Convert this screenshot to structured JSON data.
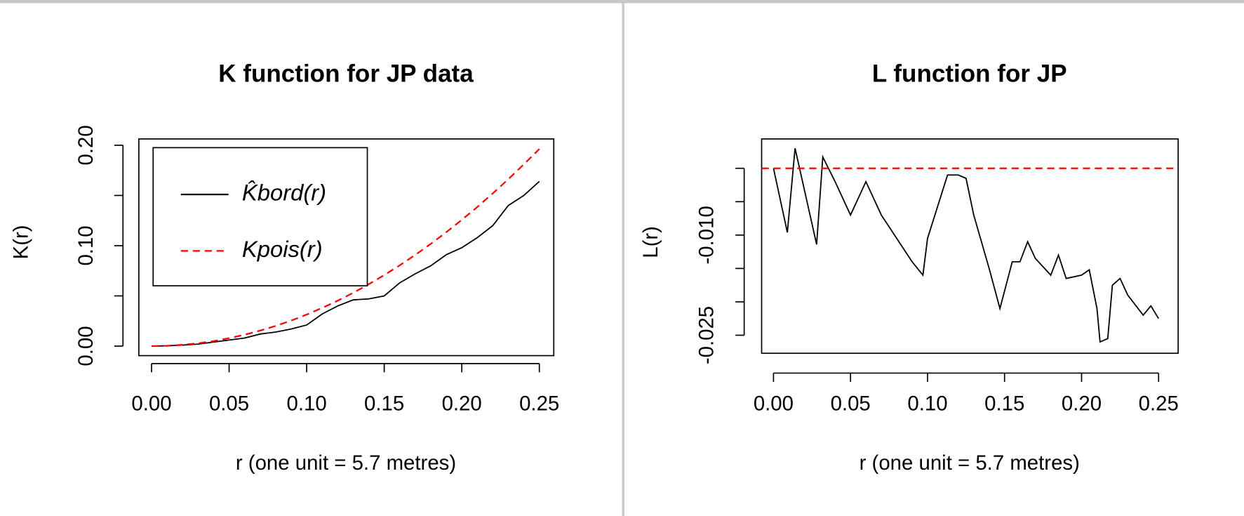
{
  "chart_data": [
    {
      "type": "line",
      "title": "K function for JP data",
      "x_label": "r (one unit = 5.7 metres)",
      "y_label": "K(r)",
      "x": [
        0,
        0.01,
        0.02,
        0.03,
        0.04,
        0.05,
        0.06,
        0.07,
        0.08,
        0.09,
        0.1,
        0.11,
        0.12,
        0.13,
        0.14,
        0.15,
        0.16,
        0.17,
        0.18,
        0.19,
        0.2,
        0.21,
        0.22,
        0.23,
        0.24,
        0.25
      ],
      "series": [
        {
          "name": "K̂bord(r)",
          "color": "#000000",
          "dash": "solid",
          "values": [
            0,
            0.0003,
            0.001,
            0.002,
            0.004,
            0.006,
            0.008,
            0.012,
            0.014,
            0.017,
            0.021,
            0.032,
            0.04,
            0.046,
            0.047,
            0.05,
            0.063,
            0.072,
            0.08,
            0.091,
            0.098,
            0.108,
            0.12,
            0.14,
            0.15,
            0.164
          ]
        },
        {
          "name": "Kpois(r)",
          "color": "#ff0000",
          "dash": "dashed",
          "values": [
            0,
            0.0003,
            0.0013,
            0.0028,
            0.005,
            0.0079,
            0.0113,
            0.0154,
            0.0201,
            0.0254,
            0.0314,
            0.038,
            0.0452,
            0.0531,
            0.0616,
            0.0707,
            0.0804,
            0.0908,
            0.1018,
            0.1134,
            0.1257,
            0.1385,
            0.1521,
            0.1662,
            0.181,
            0.1963
          ]
        }
      ],
      "xlim": [
        -0.0082,
        0.2593
      ],
      "ylim": [
        -0.0095,
        0.2063
      ],
      "xticks": [
        {
          "value": 0,
          "label": "0.00"
        },
        {
          "value": 0.05,
          "label": "0.05"
        },
        {
          "value": 0.1,
          "label": "0.10"
        },
        {
          "value": 0.15,
          "label": "0.15"
        },
        {
          "value": 0.2,
          "label": "0.20"
        },
        {
          "value": 0.25,
          "label": "0.25"
        }
      ],
      "yticks": [
        {
          "value": 0,
          "label": "0.00"
        },
        {
          "value": 0.05,
          "label": null
        },
        {
          "value": 0.1,
          "label": "0.10"
        },
        {
          "value": 0.15,
          "label": null
        },
        {
          "value": 0.2,
          "label": "0.20"
        }
      ],
      "legend": "topleft"
    },
    {
      "type": "line",
      "title": "L function for JP",
      "x_label": "r (one unit = 5.7 metres)",
      "y_label": "L(r)",
      "series": [
        {
          "color": "#000000",
          "dash": "solid",
          "x": [
            0,
            0.009,
            0.014,
            0.028,
            0.032,
            0.04,
            0.05,
            0.06,
            0.07,
            0.08,
            0.09,
            0.097,
            0.1,
            0.113,
            0.12,
            0.125,
            0.13,
            0.14,
            0.147,
            0.155,
            0.16,
            0.165,
            0.17,
            0.18,
            0.185,
            0.19,
            0.2,
            0.205,
            0.21,
            0.212,
            0.217,
            0.22,
            0.225,
            0.23,
            0.24,
            0.245,
            0.25
          ],
          "values": [
            0,
            -0.0096,
            0.003,
            -0.0114,
            0.0017,
            -0.002,
            -0.007,
            -0.002,
            -0.007,
            -0.0105,
            -0.014,
            -0.016,
            -0.0105,
            -0.001,
            -0.001,
            -0.0015,
            -0.007,
            -0.015,
            -0.021,
            -0.014,
            -0.014,
            -0.011,
            -0.0135,
            -0.016,
            -0.013,
            -0.0165,
            -0.016,
            -0.0152,
            -0.021,
            -0.026,
            -0.0255,
            -0.0175,
            -0.0165,
            -0.019,
            -0.022,
            -0.0206,
            -0.0225
          ]
        },
        {
          "color": "#ff0000",
          "dash": "dashed",
          "x": [
            -0.0077,
            0.2627
          ],
          "values": [
            0,
            0
          ]
        }
      ],
      "xlim": [
        -0.0077,
        0.2627
      ],
      "ylim": [
        -0.0277,
        0.0044
      ],
      "xticks": [
        {
          "value": 0,
          "label": "0.00"
        },
        {
          "value": 0.05,
          "label": "0.05"
        },
        {
          "value": 0.1,
          "label": "0.10"
        },
        {
          "value": 0.15,
          "label": "0.15"
        },
        {
          "value": 0.2,
          "label": "0.20"
        },
        {
          "value": 0.25,
          "label": "0.25"
        }
      ],
      "yticks": [
        {
          "value": 0,
          "label": null
        },
        {
          "value": -0.005,
          "label": null
        },
        {
          "value": -0.01,
          "label": "-0.010"
        },
        {
          "value": -0.015,
          "label": null
        },
        {
          "value": -0.02,
          "label": null
        },
        {
          "value": -0.025,
          "label": "-0.025"
        }
      ]
    }
  ]
}
